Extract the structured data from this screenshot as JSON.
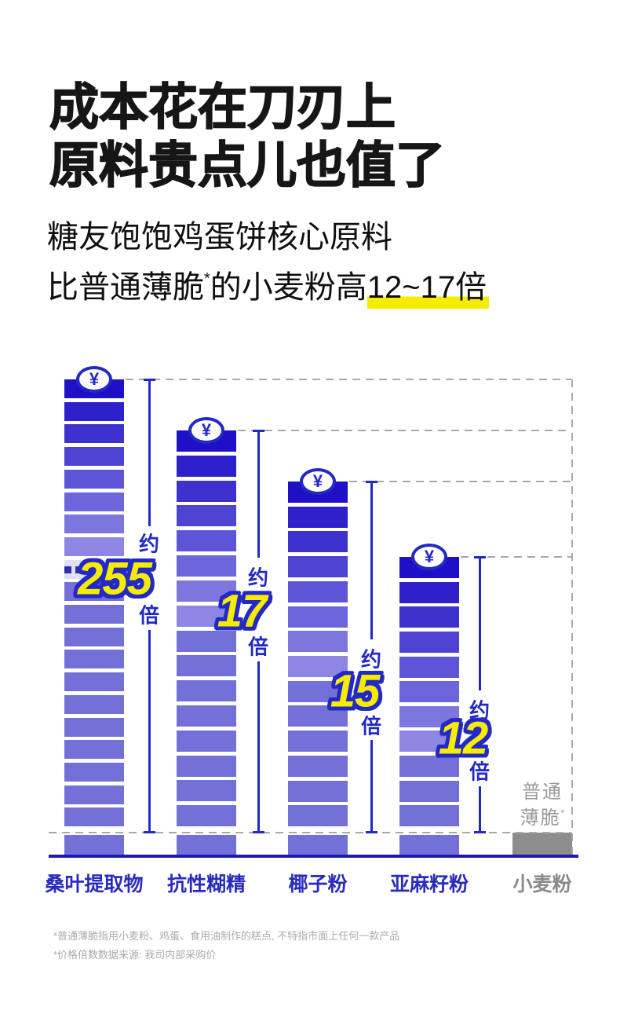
{
  "page": {
    "background": "#ffffff"
  },
  "title": {
    "line1": "成本花在刀刃上",
    "line2": "原料贵点儿也值了"
  },
  "subtitle": {
    "line1": "糖友饱饱鸡蛋饼核心原料",
    "line2_prefix": "比普通薄脆",
    "line2_asterisk": "*",
    "line2_mid": "的小麦粉高",
    "line2_highlight": "12~17倍",
    "highlight_color": "#f6ec00"
  },
  "chart_data": {
    "type": "bar",
    "title": "",
    "categories": [
      "桑叶提取物",
      "抗性糊精",
      "椰子粉",
      "亚麻籽粉",
      "小麦粉"
    ],
    "values": [
      255,
      17,
      15,
      12,
      1
    ],
    "multipliers": [
      "255",
      "17",
      "15",
      "12"
    ],
    "approx_prefix": "约",
    "unit": "倍",
    "currency_symbol": "¥",
    "baseline_note_line1": "普通",
    "baseline_note_line2": "薄脆",
    "baseline_note_sup": "*",
    "segment_counts": [
      21,
      17,
      15,
      12,
      1
    ],
    "truncated_bar_index": 0,
    "legend": "none",
    "grid": "dashed reference lines at each bar top and at baseline (1x) level",
    "colors": {
      "bar_top_dark": "#1e10c7",
      "bar_gradient_light": "#8d87e3",
      "bar_flat": "#7371d7",
      "bar_baseline_gray": "#8d8d8d",
      "dotted_segment_bg": "#dfdff6",
      "dotted_segment_dot": "#2c2cb5",
      "accent_blue": "#2329c4",
      "number_yellow": "#f6ec00",
      "label_blue": "#2a2cbd",
      "gray_label": "#8a8a8a",
      "gray_text": "#9a9a9a",
      "axis": "#1b1bb2",
      "dash": "#a9a9a9"
    }
  },
  "footnotes": {
    "line1": "*普通薄脆指用小麦粉、鸡蛋、食用油制作的糕点, 不特指市面上任何一款产品",
    "line2": "*价格倍数数据来源: 我司内部采购价"
  }
}
